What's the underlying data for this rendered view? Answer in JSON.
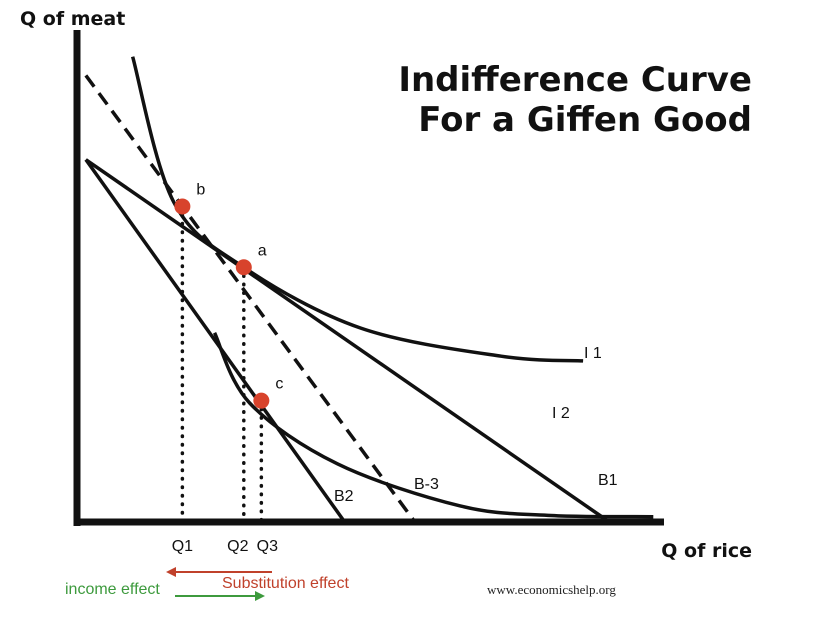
{
  "chart_data": {
    "type": "line",
    "title_lines": [
      "Indifference Curve",
      "For a Giffen Good"
    ],
    "ylabel": "Q of meat",
    "xlabel": "Q of rice",
    "xlim": [
      0,
      100
    ],
    "ylim": [
      0,
      100
    ],
    "curves": [
      {
        "name": "I 1",
        "points": [
          [
            9,
            99
          ],
          [
            16,
            68
          ],
          [
            28,
            54
          ],
          [
            48,
            41
          ],
          [
            72,
            35
          ],
          [
            86,
            34
          ]
        ]
      },
      {
        "name": "I 2",
        "points": [
          [
            23,
            40
          ],
          [
            29,
            25
          ],
          [
            44,
            12
          ],
          [
            65,
            3
          ],
          [
            80,
            1
          ],
          [
            98,
            0.7
          ]
        ]
      }
    ],
    "budget_lines": [
      {
        "name": "B1",
        "from": [
          1,
          77
        ],
        "to": [
          90,
          0
        ],
        "dashed": false
      },
      {
        "name": "B2",
        "from": [
          1,
          77
        ],
        "to": [
          45,
          0
        ],
        "dashed": false
      },
      {
        "name": "B-3",
        "from": [
          1,
          95
        ],
        "to": [
          57,
          0
        ],
        "dashed": true
      }
    ],
    "points": [
      {
        "label": "b",
        "x": 17.5,
        "y": 67
      },
      {
        "label": "a",
        "x": 28,
        "y": 54
      },
      {
        "label": "c",
        "x": 31,
        "y": 25.5
      }
    ],
    "x_ticks": [
      {
        "label": "Q1",
        "x": 17.5
      },
      {
        "label": "Q2",
        "x": 28
      },
      {
        "label": "Q3",
        "x": 31
      }
    ],
    "effects": {
      "income": {
        "label": "income effect",
        "color": "#3d9a3d"
      },
      "substitution": {
        "label": "Substitution effect",
        "color": "#c0412b"
      }
    },
    "point_color": "#d8432c",
    "line_color": "#111111"
  },
  "credit": "www.economicshelp.org"
}
